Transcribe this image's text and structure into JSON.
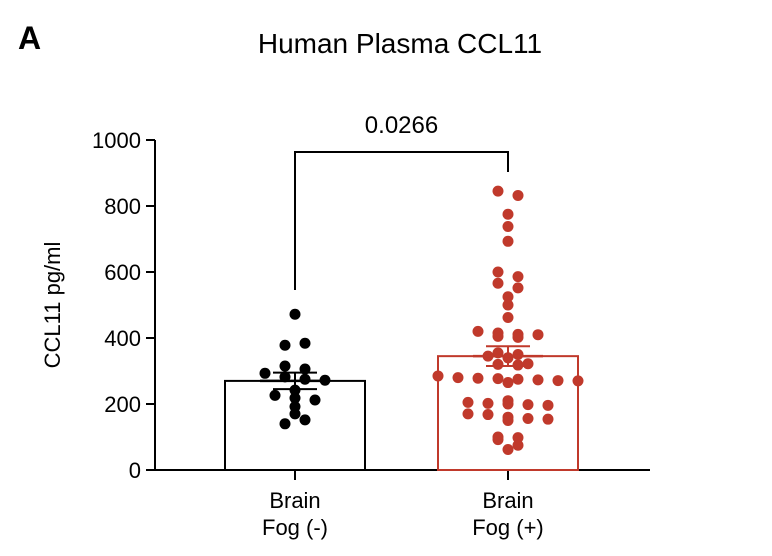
{
  "panel_label": "A",
  "chart_data": {
    "type": "bar",
    "title": "Human Plasma CCL11",
    "xlabel": "",
    "ylabel": "CCL11 pg/ml",
    "ylim": [
      0,
      1000
    ],
    "yticks": [
      "0",
      "200",
      "400",
      "600",
      "800",
      "1000"
    ],
    "categories": [
      {
        "line1": "Brain",
        "line2": "Fog (-)"
      },
      {
        "line1": "Brain",
        "line2": "Fog (+)"
      }
    ],
    "colors": [
      "#000000",
      "#c0392b"
    ],
    "means": [
      270,
      345
    ],
    "sem": [
      25,
      30
    ],
    "points": [
      [
        472,
        378,
        384,
        315,
        306,
        293,
        282,
        275,
        272,
        242,
        226,
        218,
        170,
        140,
        152,
        212,
        192
      ],
      [
        845,
        832,
        775,
        738,
        693,
        600,
        586,
        566,
        552,
        525,
        500,
        462,
        420,
        415,
        411,
        410,
        405,
        402,
        355,
        350,
        345,
        340,
        322,
        320,
        318,
        285,
        280,
        278,
        277,
        275,
        273,
        271,
        270,
        265,
        210,
        205,
        202,
        200,
        198,
        196,
        170,
        168,
        160,
        156,
        154,
        150,
        100,
        98,
        92,
        75,
        62
      ]
    ],
    "significance": "0.0266"
  }
}
